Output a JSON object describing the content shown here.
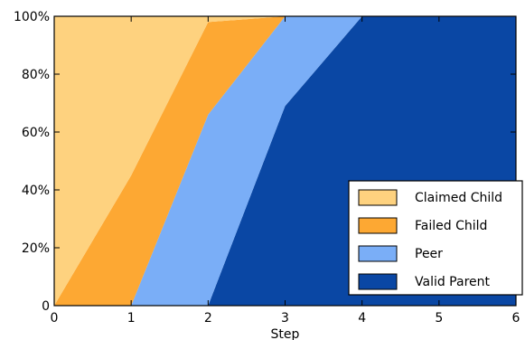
{
  "chart_data": {
    "type": "area",
    "stacked": true,
    "normalized": true,
    "xlabel": "Step",
    "ylabel": "",
    "xlim": [
      0,
      6
    ],
    "ylim": [
      0,
      100
    ],
    "x": [
      0,
      1,
      2,
      3,
      4,
      5,
      6
    ],
    "x_ticks": [
      "0",
      "1",
      "2",
      "3",
      "4",
      "5",
      "6"
    ],
    "y_ticks": [
      "0",
      "20%",
      "40%",
      "60%",
      "80%",
      "100%"
    ],
    "series": [
      {
        "name": "Valid Parent",
        "color": "#0a47a4",
        "values": [
          0,
          0,
          0,
          69,
          100,
          100,
          100
        ]
      },
      {
        "name": "Peer",
        "color": "#7aaef7",
        "values": [
          0,
          0,
          66,
          31,
          0,
          0,
          0
        ]
      },
      {
        "name": "Failed Child",
        "color": "#fda833",
        "values": [
          0,
          45,
          32,
          0,
          0,
          0,
          0
        ]
      },
      {
        "name": "Claimed Child",
        "color": "#fed27f",
        "values": [
          100,
          55,
          2,
          0,
          0,
          0,
          0
        ]
      }
    ],
    "legend": {
      "placement": "lower-right",
      "order": [
        "Claimed Child",
        "Failed Child",
        "Peer",
        "Valid Parent"
      ]
    },
    "grid": false
  }
}
